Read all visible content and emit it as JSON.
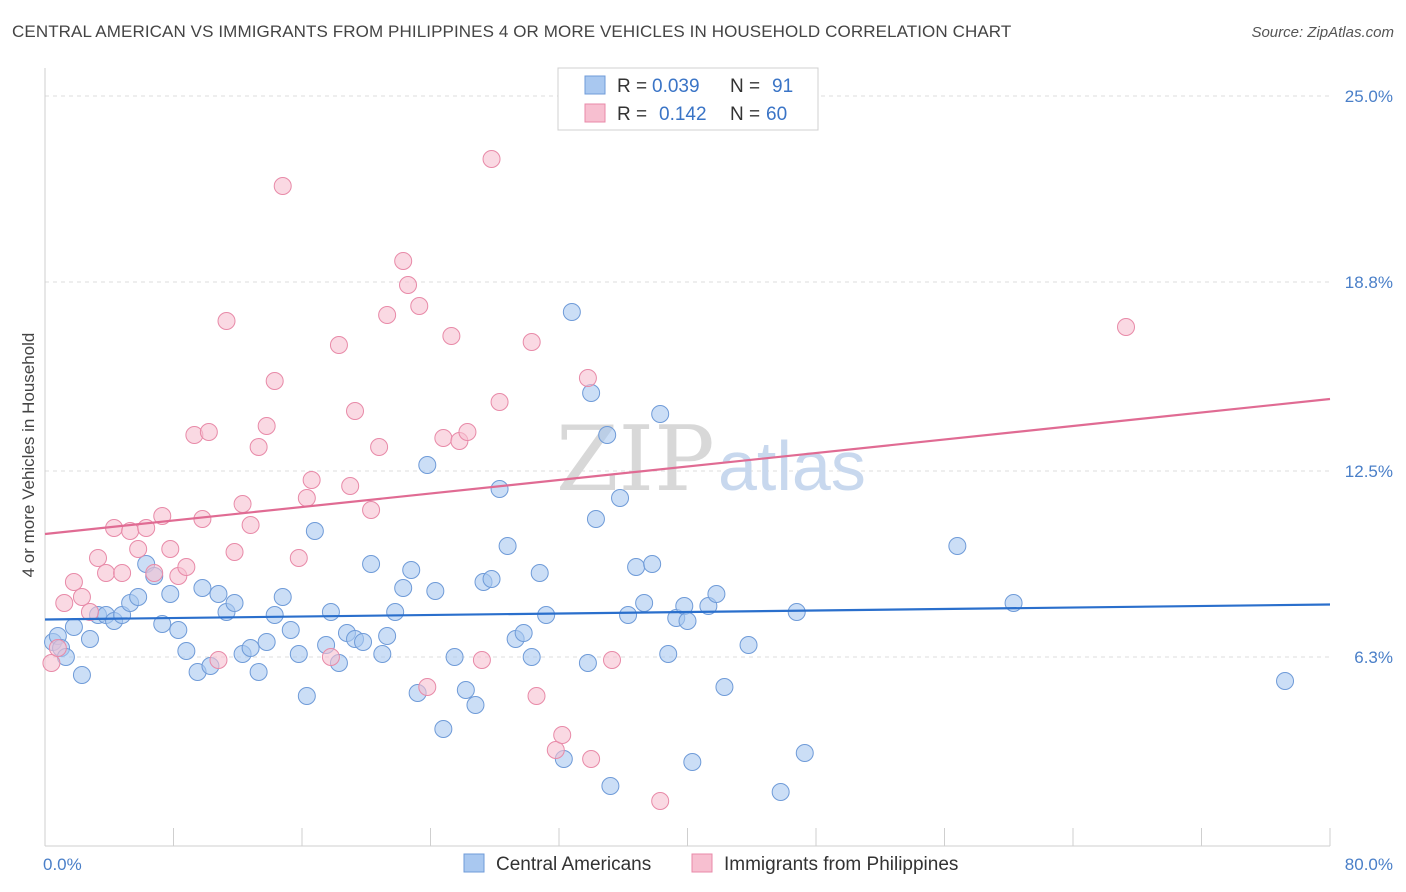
{
  "header": {
    "title": "CENTRAL AMERICAN VS IMMIGRANTS FROM PHILIPPINES 4 OR MORE VEHICLES IN HOUSEHOLD CORRELATION CHART",
    "source": "Source: ZipAtlas.com"
  },
  "watermark": {
    "zip": "ZIP",
    "atlas": "atlas"
  },
  "legend": {
    "rows": [
      {
        "r_label": "R =",
        "r_value": "0.039",
        "n_label": "N =",
        "n_value": "91",
        "color": "#a9c8f0",
        "stroke": "#6f9bd8"
      },
      {
        "r_label": "R =",
        "r_value": "0.142",
        "n_label": "N =",
        "n_value": "60",
        "color": "#f7bfd0",
        "stroke": "#e88aa8"
      }
    ]
  },
  "bottom_legend": [
    {
      "label": "Central Americans",
      "color": "#a9c8f0",
      "stroke": "#6f9bd8"
    },
    {
      "label": "Immigrants from Philippines",
      "color": "#f7bfd0",
      "stroke": "#e88aa8"
    }
  ],
  "chart_data": {
    "type": "scatter",
    "ylabel": "4 or more Vehicles in Household",
    "xlim": [
      0,
      80
    ],
    "ylim": [
      0,
      25.6
    ],
    "x_tick_labels": [
      {
        "value": 0,
        "label": "0.0%"
      },
      {
        "value": 80,
        "label": "80.0%"
      }
    ],
    "y_tick_labels": [
      {
        "value": 6.3,
        "label": "6.3%"
      },
      {
        "value": 12.5,
        "label": "12.5%"
      },
      {
        "value": 18.8,
        "label": "18.8%"
      },
      {
        "value": 25.0,
        "label": "25.0%"
      }
    ],
    "x_minor_ticks": [
      0,
      8,
      16,
      24,
      32,
      40,
      48,
      56,
      64,
      72,
      80
    ],
    "grid": true,
    "series": [
      {
        "name": "Central Americans",
        "color": "#a9c8f0",
        "stroke": "#6f9bd8",
        "line_color": "#2a6fcc",
        "trend": [
          [
            0,
            7.55
          ],
          [
            80,
            8.05
          ]
        ],
        "points": [
          [
            0.5,
            6.8
          ],
          [
            0.8,
            7.0
          ],
          [
            1.0,
            6.6
          ],
          [
            1.3,
            6.3
          ],
          [
            1.8,
            7.3
          ],
          [
            2.3,
            5.7
          ],
          [
            2.8,
            6.9
          ],
          [
            3.3,
            7.7
          ],
          [
            3.8,
            7.7
          ],
          [
            4.3,
            7.5
          ],
          [
            4.8,
            7.7
          ],
          [
            5.3,
            8.1
          ],
          [
            5.8,
            8.3
          ],
          [
            6.3,
            9.4
          ],
          [
            6.8,
            9.0
          ],
          [
            7.3,
            7.4
          ],
          [
            7.8,
            8.4
          ],
          [
            8.3,
            7.2
          ],
          [
            8.8,
            6.5
          ],
          [
            9.5,
            5.8
          ],
          [
            9.8,
            8.6
          ],
          [
            10.3,
            6.0
          ],
          [
            10.8,
            8.4
          ],
          [
            11.3,
            7.8
          ],
          [
            11.8,
            8.1
          ],
          [
            12.3,
            6.4
          ],
          [
            12.8,
            6.6
          ],
          [
            13.3,
            5.8
          ],
          [
            13.8,
            6.8
          ],
          [
            14.3,
            7.7
          ],
          [
            14.8,
            8.3
          ],
          [
            15.3,
            7.2
          ],
          [
            15.8,
            6.4
          ],
          [
            16.3,
            5.0
          ],
          [
            16.8,
            10.5
          ],
          [
            17.5,
            6.7
          ],
          [
            17.8,
            7.8
          ],
          [
            18.3,
            6.1
          ],
          [
            18.8,
            7.1
          ],
          [
            19.3,
            6.9
          ],
          [
            19.8,
            6.8
          ],
          [
            20.3,
            9.4
          ],
          [
            21.0,
            6.4
          ],
          [
            21.3,
            7.0
          ],
          [
            21.8,
            7.8
          ],
          [
            22.3,
            8.6
          ],
          [
            22.8,
            9.2
          ],
          [
            23.2,
            5.1
          ],
          [
            23.8,
            12.7
          ],
          [
            24.3,
            8.5
          ],
          [
            24.8,
            3.9
          ],
          [
            25.5,
            6.3
          ],
          [
            26.2,
            5.2
          ],
          [
            26.8,
            4.7
          ],
          [
            27.3,
            8.8
          ],
          [
            27.8,
            8.9
          ],
          [
            28.3,
            11.9
          ],
          [
            28.8,
            10.0
          ],
          [
            29.3,
            6.9
          ],
          [
            29.8,
            7.1
          ],
          [
            30.3,
            6.3
          ],
          [
            30.8,
            9.1
          ],
          [
            31.2,
            7.7
          ],
          [
            32.3,
            2.9
          ],
          [
            32.8,
            17.8
          ],
          [
            33.8,
            6.1
          ],
          [
            34.0,
            15.1
          ],
          [
            34.3,
            10.9
          ],
          [
            35.0,
            13.7
          ],
          [
            35.2,
            2.0
          ],
          [
            35.8,
            11.6
          ],
          [
            36.3,
            7.7
          ],
          [
            36.8,
            9.3
          ],
          [
            37.3,
            8.1
          ],
          [
            37.8,
            9.4
          ],
          [
            38.3,
            14.4
          ],
          [
            38.8,
            6.4
          ],
          [
            39.3,
            7.6
          ],
          [
            39.8,
            8.0
          ],
          [
            40.0,
            7.5
          ],
          [
            40.3,
            2.8
          ],
          [
            41.3,
            8.0
          ],
          [
            41.8,
            8.4
          ],
          [
            42.3,
            5.3
          ],
          [
            43.8,
            6.7
          ],
          [
            45.8,
            1.8
          ],
          [
            46.8,
            7.8
          ],
          [
            47.3,
            3.1
          ],
          [
            56.8,
            10.0
          ],
          [
            60.3,
            8.1
          ],
          [
            77.2,
            5.5
          ]
        ]
      },
      {
        "name": "Immigrants from Philippines",
        "color": "#f7bfd0",
        "stroke": "#e88aa8",
        "line_color": "#e06b93",
        "trend": [
          [
            0,
            10.4
          ],
          [
            80,
            14.9
          ]
        ],
        "points": [
          [
            0.4,
            6.1
          ],
          [
            0.8,
            6.6
          ],
          [
            1.2,
            8.1
          ],
          [
            1.8,
            8.8
          ],
          [
            2.3,
            8.3
          ],
          [
            2.8,
            7.8
          ],
          [
            3.3,
            9.6
          ],
          [
            3.8,
            9.1
          ],
          [
            4.3,
            10.6
          ],
          [
            4.8,
            9.1
          ],
          [
            5.3,
            10.5
          ],
          [
            5.8,
            9.9
          ],
          [
            6.3,
            10.6
          ],
          [
            6.8,
            9.1
          ],
          [
            7.3,
            11.0
          ],
          [
            7.8,
            9.9
          ],
          [
            8.3,
            9.0
          ],
          [
            8.8,
            9.3
          ],
          [
            9.3,
            13.7
          ],
          [
            9.8,
            10.9
          ],
          [
            10.2,
            13.8
          ],
          [
            10.8,
            6.2
          ],
          [
            11.3,
            17.5
          ],
          [
            11.8,
            9.8
          ],
          [
            12.3,
            11.4
          ],
          [
            12.8,
            10.7
          ],
          [
            13.3,
            13.3
          ],
          [
            13.8,
            14.0
          ],
          [
            14.3,
            15.5
          ],
          [
            14.8,
            22.0
          ],
          [
            15.8,
            9.6
          ],
          [
            16.3,
            11.6
          ],
          [
            16.6,
            12.2
          ],
          [
            17.8,
            6.3
          ],
          [
            18.3,
            16.7
          ],
          [
            19.0,
            12.0
          ],
          [
            19.3,
            14.5
          ],
          [
            20.3,
            11.2
          ],
          [
            20.8,
            13.3
          ],
          [
            21.3,
            17.7
          ],
          [
            22.3,
            19.5
          ],
          [
            22.6,
            18.7
          ],
          [
            23.3,
            18.0
          ],
          [
            23.8,
            5.3
          ],
          [
            24.8,
            13.6
          ],
          [
            25.3,
            17.0
          ],
          [
            25.8,
            13.5
          ],
          [
            26.3,
            13.8
          ],
          [
            27.2,
            6.2
          ],
          [
            27.8,
            22.9
          ],
          [
            28.3,
            14.8
          ],
          [
            30.3,
            16.8
          ],
          [
            30.6,
            5.0
          ],
          [
            31.8,
            3.2
          ],
          [
            32.2,
            3.7
          ],
          [
            33.8,
            15.6
          ],
          [
            34.0,
            2.9
          ],
          [
            35.3,
            6.2
          ],
          [
            38.3,
            1.5
          ],
          [
            67.3,
            17.3
          ]
        ]
      }
    ]
  }
}
